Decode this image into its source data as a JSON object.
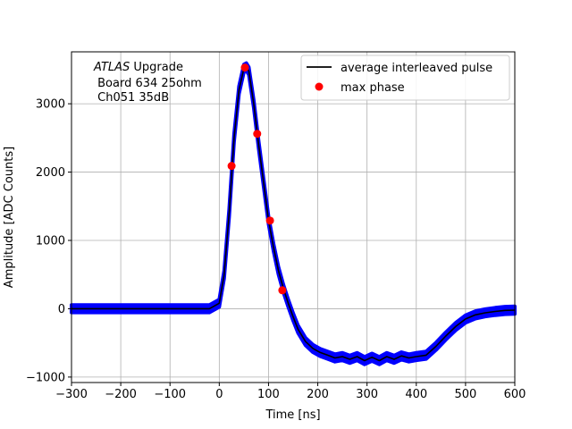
{
  "chart_data": {
    "type": "line",
    "title": "",
    "xlabel": "Time [ns]",
    "ylabel": "Amplitude [ADC Counts]",
    "xlim": [
      -300,
      600
    ],
    "ylim": [
      -1080,
      3760
    ],
    "xticks": [
      -300,
      -200,
      -100,
      0,
      100,
      200,
      300,
      400,
      500,
      600
    ],
    "yticks": [
      -1000,
      0,
      1000,
      2000,
      3000
    ],
    "grid": true,
    "legend_position": "top-right",
    "annotation": {
      "italic_prefix": "ATLAS",
      "line1_rest": " Upgrade",
      "line2": " Board 634 25ohm",
      "line3": " Ch051 35dB"
    },
    "series": [
      {
        "name": "",
        "role": "samples",
        "color": "#0000ff",
        "band_halfwidth": 55,
        "x": [
          -300,
          -200,
          -100,
          -20,
          0,
          10,
          20,
          30,
          40,
          50,
          55,
          60,
          70,
          80,
          90,
          100,
          110,
          120,
          130,
          140,
          150,
          160,
          175,
          190,
          205,
          220,
          235,
          250,
          265,
          280,
          295,
          310,
          325,
          340,
          355,
          370,
          385,
          400,
          420,
          440,
          460,
          480,
          500,
          520,
          540,
          560,
          580,
          600
        ],
        "y": [
          0,
          0,
          0,
          0,
          80,
          500,
          1400,
          2500,
          3200,
          3520,
          3540,
          3480,
          3000,
          2400,
          1850,
          1300,
          900,
          560,
          300,
          80,
          -120,
          -300,
          -480,
          -580,
          -640,
          -680,
          -720,
          -700,
          -740,
          -700,
          -760,
          -710,
          -760,
          -700,
          -740,
          -690,
          -720,
          -700,
          -680,
          -550,
          -400,
          -260,
          -150,
          -90,
          -60,
          -40,
          -25,
          -20
        ]
      },
      {
        "name": "average interleaved pulse",
        "role": "average",
        "color": "#000000",
        "x": [
          -300,
          -200,
          -100,
          -20,
          0,
          10,
          20,
          30,
          40,
          50,
          55,
          60,
          70,
          80,
          90,
          100,
          110,
          120,
          130,
          140,
          150,
          160,
          175,
          190,
          205,
          220,
          235,
          250,
          265,
          280,
          295,
          310,
          325,
          340,
          355,
          370,
          385,
          400,
          420,
          440,
          460,
          480,
          500,
          520,
          540,
          560,
          580,
          600
        ],
        "y": [
          0,
          0,
          0,
          0,
          80,
          500,
          1400,
          2500,
          3200,
          3520,
          3540,
          3480,
          3000,
          2400,
          1850,
          1300,
          900,
          560,
          300,
          80,
          -120,
          -300,
          -480,
          -580,
          -640,
          -680,
          -720,
          -700,
          -740,
          -700,
          -760,
          -710,
          -760,
          -700,
          -740,
          -690,
          -720,
          -700,
          -680,
          -550,
          -400,
          -260,
          -150,
          -90,
          -60,
          -40,
          -25,
          -20
        ]
      },
      {
        "name": "max phase",
        "role": "points",
        "color": "#ff0000",
        "x": [
          25,
          52,
          77,
          103,
          128
        ],
        "y": [
          2090,
          3530,
          2560,
          1290,
          270
        ]
      }
    ]
  }
}
